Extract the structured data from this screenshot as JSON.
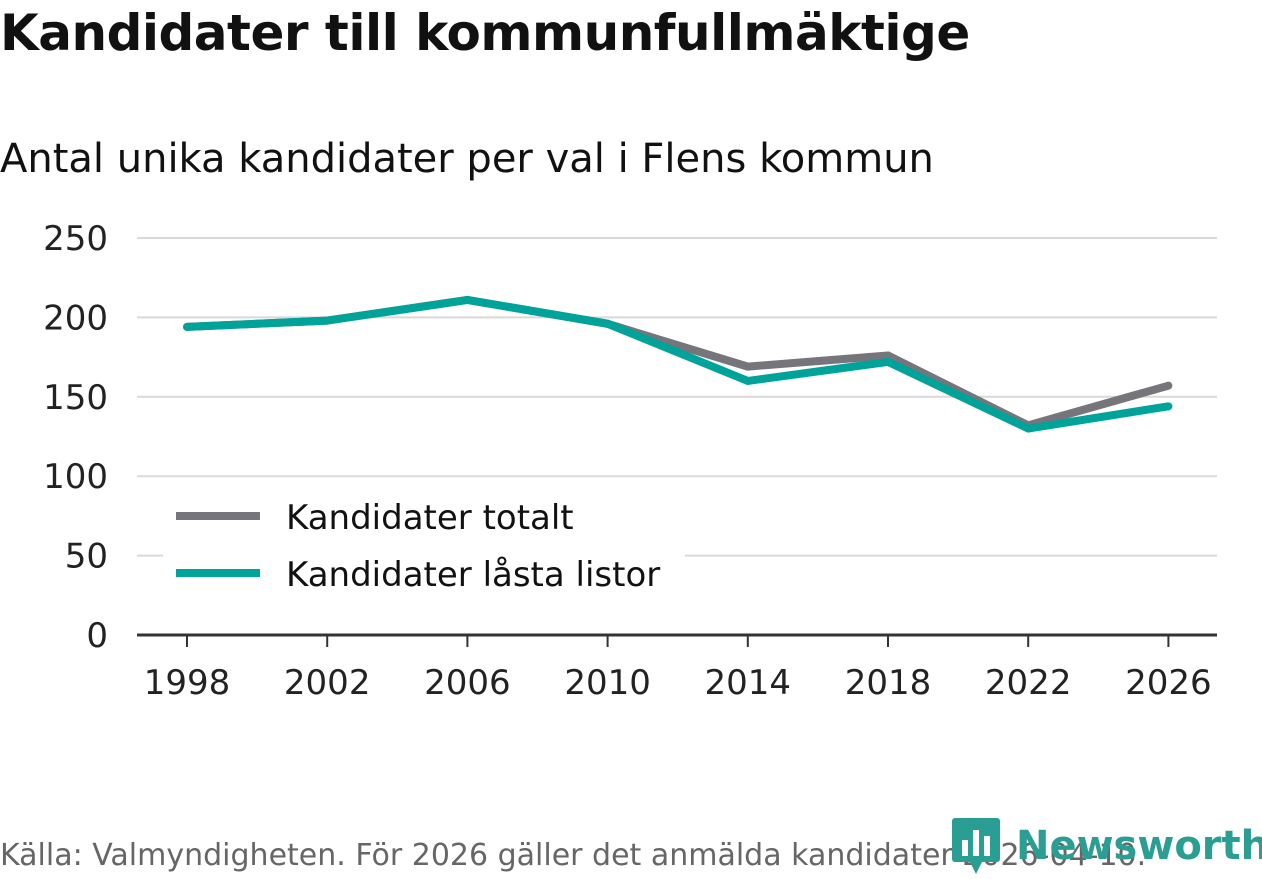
{
  "title": "Kandidater till kommunfullmäktige",
  "subtitle": "Antal unika kandidater per val i Flens kommun",
  "source": "Källa: Valmyndigheten. För 2026 gäller det anmälda kandidater 2026-04-10.",
  "brand": "Newsworthy",
  "colors": {
    "totalt": "#77757c",
    "lasta": "#00a39a",
    "grid": "#d9d9d9",
    "axis": "#333333"
  },
  "chart_data": {
    "type": "line",
    "title": "Kandidater till kommunfullmäktige",
    "subtitle": "Antal unika kandidater per val i Flens kommun",
    "x": [
      "1998",
      "2002",
      "2006",
      "2010",
      "2014",
      "2018",
      "2022",
      "2026"
    ],
    "y_ticks": [
      "0",
      "50",
      "100",
      "150",
      "200",
      "250"
    ],
    "ylim": [
      0,
      250
    ],
    "grid": true,
    "legend_position": "bottom-left",
    "series": [
      {
        "name": "Kandidater totalt",
        "values": [
          194,
          198,
          211,
          196,
          169,
          176,
          132,
          157
        ]
      },
      {
        "name": "Kandidater låsta listor",
        "values": [
          194,
          198,
          211,
          196,
          160,
          172,
          130,
          144
        ]
      }
    ]
  }
}
